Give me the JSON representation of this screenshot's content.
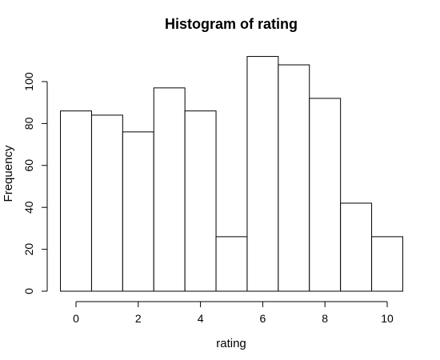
{
  "chart_data": {
    "type": "bar",
    "histogram": true,
    "title": "Histogram of rating",
    "xlabel": "rating",
    "ylabel": "Frequency",
    "bin_edges": [
      -0.5,
      0.5,
      1.5,
      2.5,
      3.5,
      4.5,
      5.5,
      6.5,
      7.5,
      8.5,
      9.5,
      10.5
    ],
    "values": [
      86,
      84,
      76,
      97,
      86,
      26,
      112,
      108,
      92,
      42,
      26
    ],
    "xlim": [
      -0.5,
      10.5
    ],
    "ylim": [
      0,
      112
    ],
    "x_ticks": [
      0,
      2,
      4,
      6,
      8,
      10
    ],
    "y_ticks": [
      0,
      20,
      40,
      60,
      80,
      100
    ],
    "grid": false,
    "legend": "none"
  }
}
